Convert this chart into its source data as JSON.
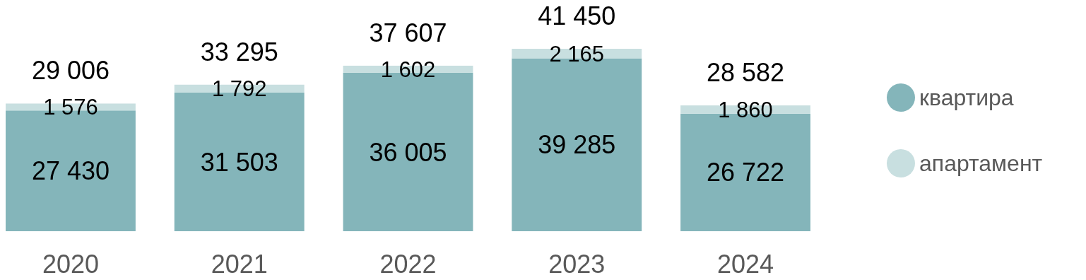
{
  "chart_data": {
    "type": "bar",
    "stacked": true,
    "categories": [
      "2020",
      "2021",
      "2022",
      "2023",
      "2024"
    ],
    "series": [
      {
        "name": "квартира",
        "color": "#84b5ba",
        "values": [
          27430,
          31503,
          36005,
          39285,
          26722
        ],
        "value_labels": [
          "27 430",
          "31 503",
          "36 005",
          "39 285",
          "26 722"
        ]
      },
      {
        "name": "апартамент",
        "color": "#c8dfe0",
        "values": [
          1576,
          1792,
          1602,
          2165,
          1860
        ],
        "value_labels": [
          "1 576",
          "1 792",
          "1 602",
          "2 165",
          "1 860"
        ]
      }
    ],
    "totals": [
      "29 006",
      "33 295",
      "37 607",
      "41 450",
      "28 582"
    ],
    "legend": "right"
  }
}
